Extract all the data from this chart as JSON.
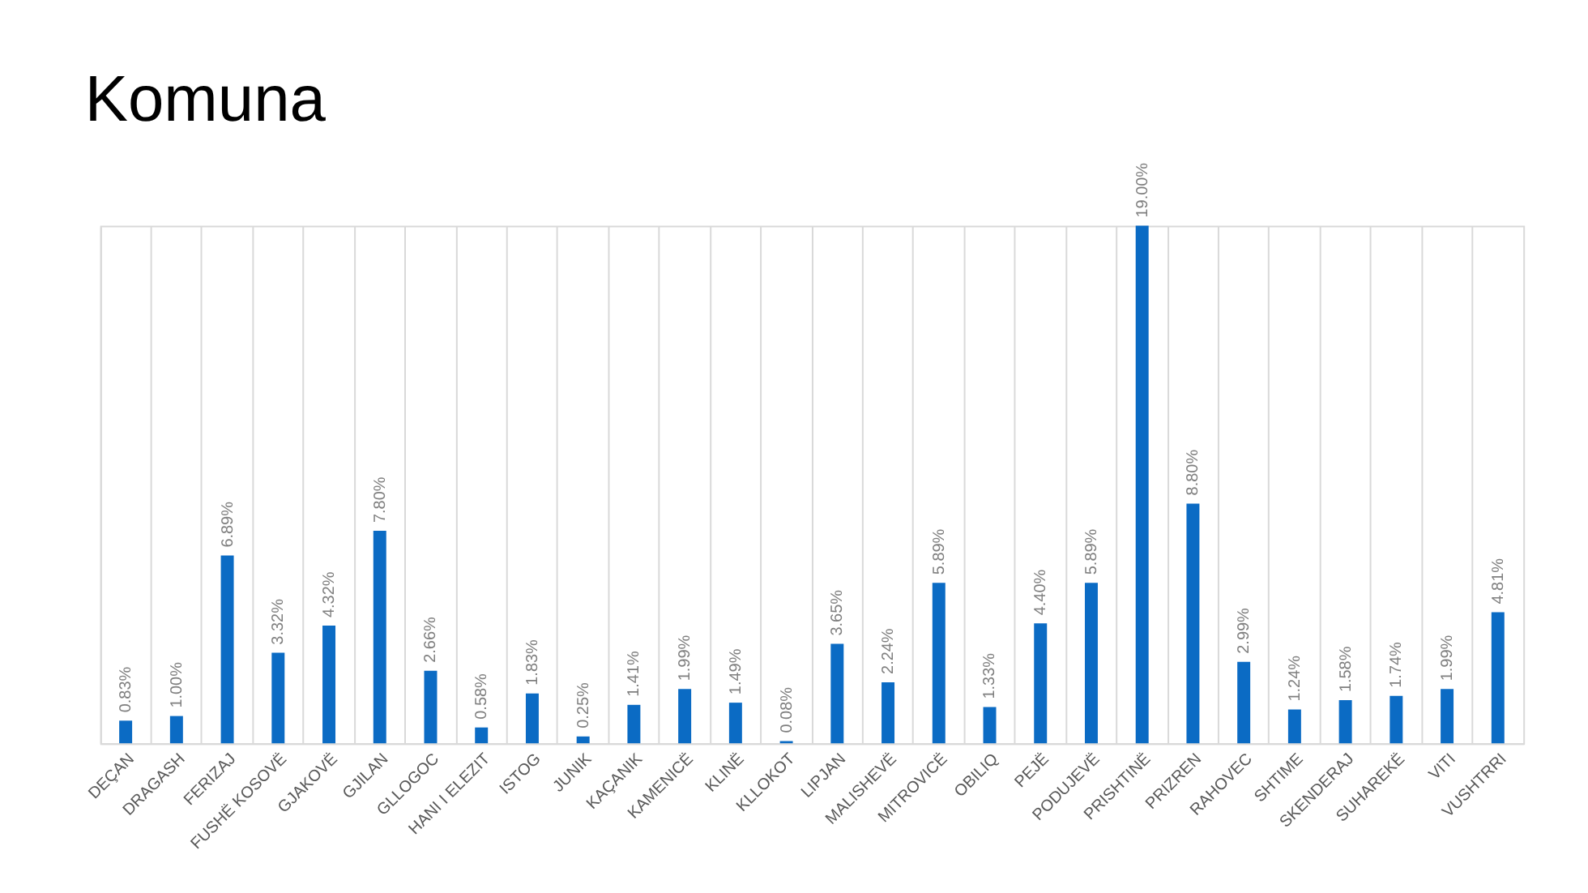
{
  "chart_data": {
    "type": "bar",
    "title": "Komuna",
    "categories": [
      "DEÇAN",
      "DRAGASH",
      "FERIZAJ",
      "FUSHË KOSOVË",
      "GJAKOVË",
      "GJILAN",
      "GLLOGOC",
      "HANI I ELEZIT",
      "ISTOG",
      "JUNIK",
      "KAÇANIK",
      "KAMENICË",
      "KLINË",
      "KLLOKOT",
      "LIPJAN",
      "MALISHEVË",
      "MITROVICË",
      "OBILIQ",
      "PEJË",
      "PODUJEVË",
      "PRISHTINË",
      "PRIZREN",
      "RAHOVEC",
      "SHTIME",
      "SKENDERAJ",
      "SUHAREKË",
      "VITI",
      "VUSHTRRI"
    ],
    "values": [
      0.83,
      1.0,
      6.89,
      3.32,
      4.32,
      7.8,
      2.66,
      0.58,
      1.83,
      0.25,
      1.41,
      1.99,
      1.49,
      0.08,
      3.65,
      2.24,
      5.89,
      1.33,
      4.4,
      5.89,
      19.0,
      8.8,
      2.99,
      1.24,
      1.58,
      1.74,
      1.99,
      4.81
    ],
    "value_labels": [
      "0.83%",
      "1.00%",
      "6.89%",
      "3.32%",
      "4.32%",
      "7.80%",
      "2.66%",
      "0.58%",
      "1.83%",
      "0.25%",
      "1.41%",
      "1.99%",
      "1.49%",
      "0.08%",
      "3.65%",
      "2.24%",
      "5.89%",
      "1.33%",
      "4.40%",
      "5.89%",
      "19.00%",
      "8.80%",
      "2.99%",
      "1.24%",
      "1.58%",
      "1.74%",
      "1.99%",
      "4.81%"
    ],
    "color": "#0b6bc4",
    "grid": "x"
  }
}
